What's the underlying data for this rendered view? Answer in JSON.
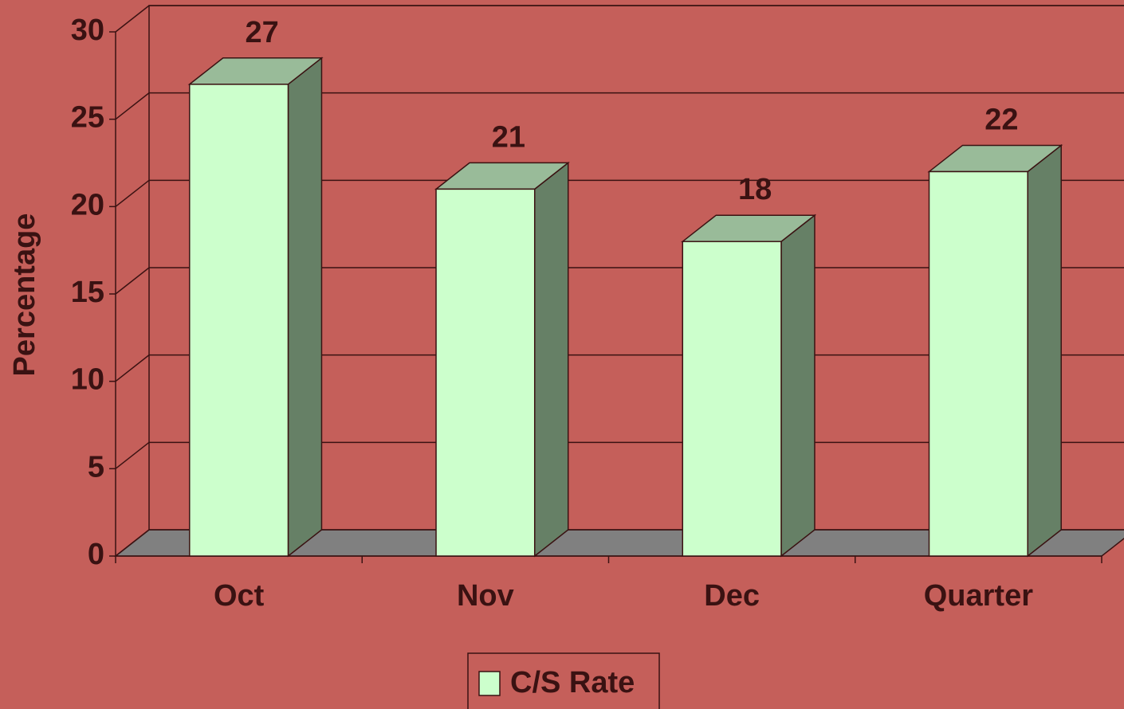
{
  "chart_data": {
    "type": "bar3d",
    "categories": [
      "Oct",
      "Nov",
      "Dec",
      "Quarter"
    ],
    "series": [
      {
        "name": "C/S Rate",
        "color": "#ccffcc",
        "values": [
          27,
          21,
          18,
          22
        ]
      }
    ],
    "ylabel": "Percentage",
    "ylim": [
      0,
      30
    ],
    "yticks": [
      0,
      5,
      10,
      15,
      20,
      25,
      30
    ],
    "grid": true,
    "legend": "bottom"
  }
}
